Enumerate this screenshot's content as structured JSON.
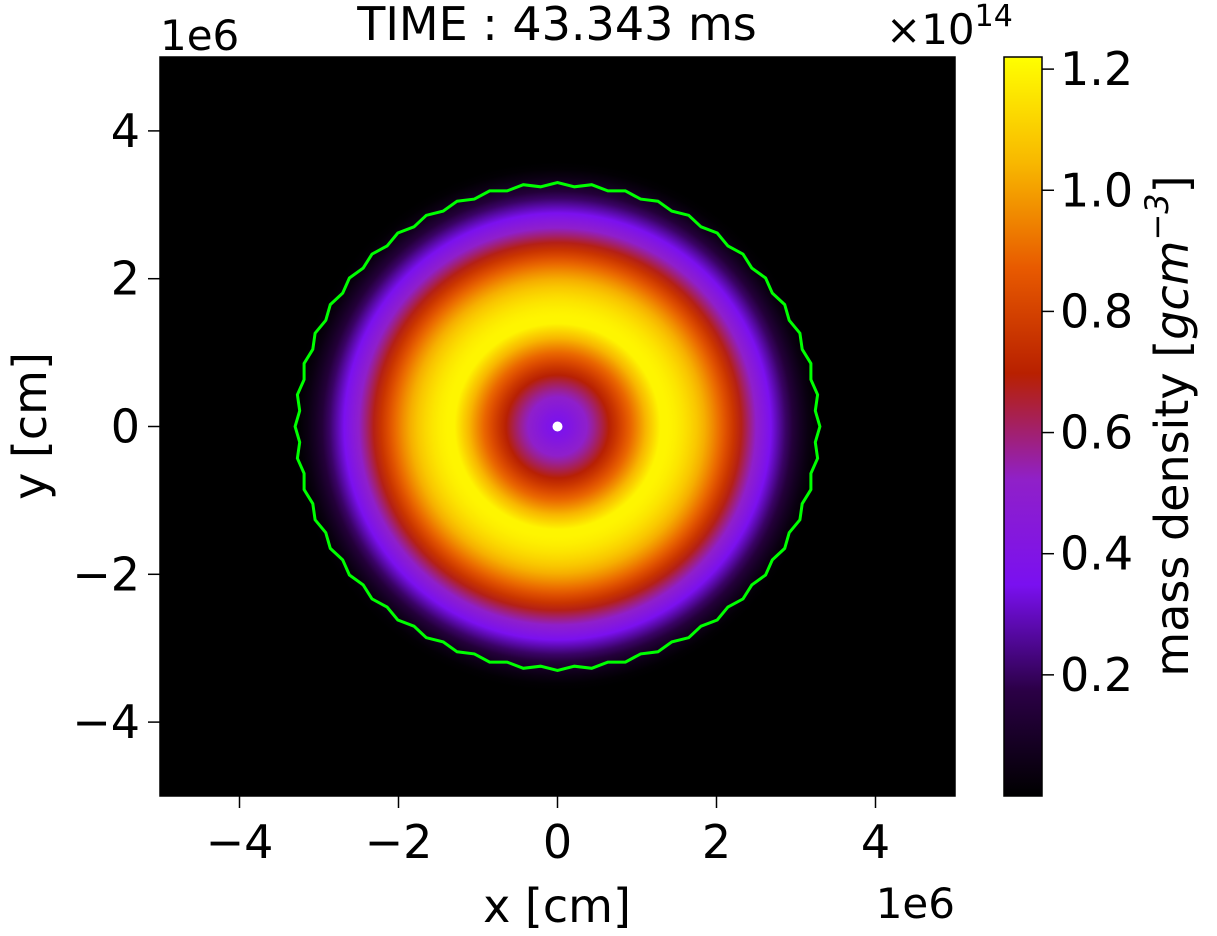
{
  "chart_data": {
    "type": "heatmap",
    "title": "TIME : 43.343 ms",
    "xlabel": "x [cm]",
    "ylabel": "y [cm]",
    "x_scale_label": "1e6",
    "y_scale_label": "1e6",
    "xlim": [
      -5,
      5
    ],
    "ylim": [
      -5,
      5
    ],
    "x_ticks": [
      -4,
      -2,
      0,
      2,
      4
    ],
    "y_ticks": [
      -4,
      -2,
      0,
      2,
      4
    ],
    "x_tick_labels": [
      "−4",
      "−2",
      "0",
      "2",
      "4"
    ],
    "y_tick_labels": [
      "−4",
      "−2",
      "0",
      "2",
      "4"
    ],
    "colorbar": {
      "label_prefix": "mass density [",
      "label_unit_base": "gcm",
      "label_unit_exp": "−3",
      "label_suffix": "]",
      "multiplier_base": "×10",
      "multiplier_exp": "14",
      "range": [
        0.0,
        1.22
      ],
      "ticks": [
        0.2,
        0.4,
        0.6,
        0.8,
        1.0,
        1.2
      ],
      "tick_labels": [
        "0.2",
        "0.4",
        "0.6",
        "0.8",
        "1.0",
        "1.2"
      ],
      "colormap": "gnuplot",
      "colors": [
        "#000000",
        "#2b0046",
        "#7a10f0",
        "#9020c8",
        "#b82000",
        "#e85a00",
        "#f8b800",
        "#ffff00"
      ]
    },
    "density_field": {
      "ring_peak_radius": 1.3,
      "ring_peak_value": 1.2,
      "center_value": 0.35,
      "edge_radius": 3.3
    },
    "contour_color": "#00ff00",
    "contour_radius": 3.3,
    "center_marker_color": "#ffffff",
    "center_marker": [
      0,
      0
    ]
  }
}
